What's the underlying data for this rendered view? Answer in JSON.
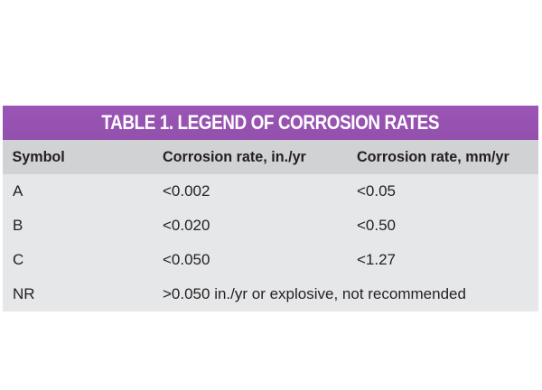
{
  "table": {
    "title": "TABLE 1.  LEGEND OF CORROSION RATES",
    "headers": [
      "Symbol",
      "Corrosion rate, in./yr",
      "Corrosion rate, mm/yr"
    ],
    "rows": [
      {
        "symbol": "A",
        "in_yr": "<0.002",
        "mm_yr": "<0.05"
      },
      {
        "symbol": "B",
        "in_yr": "<0.020",
        "mm_yr": "<0.50"
      },
      {
        "symbol": "C",
        "in_yr": "<0.050",
        "mm_yr": "<1.27"
      }
    ],
    "nr_row": {
      "symbol": "NR",
      "text": ">0.050 in./yr or explosive, not recommended"
    }
  },
  "colors": {
    "title_bg": "#9a55b5",
    "header_bg": "#d1d2d4",
    "body_bg": "#e6e7e8",
    "text": "#231f20"
  }
}
